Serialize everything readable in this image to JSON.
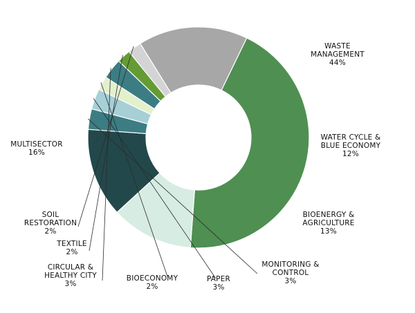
{
  "chart_data": {
    "type": "pie",
    "donut": true,
    "title": "",
    "slices": [
      {
        "label": "WASTE MANAGEMENT",
        "value": 44,
        "value_label": "44%",
        "color": "#4f8f52"
      },
      {
        "label": "WATER CYCLE & BLUE ECONOMY",
        "value": 12,
        "value_label": "12%",
        "color": "#d7ece2"
      },
      {
        "label": "BIOENERGY & AGRICULTURE",
        "value": 13,
        "value_label": "13%",
        "color": "#23484b"
      },
      {
        "label": "MONITORING & CONTROL",
        "value": 3,
        "value_label": "3%",
        "color": "#3c7d84"
      },
      {
        "label": "PAPER",
        "value": 3,
        "value_label": "3%",
        "color": "#a6cfd6"
      },
      {
        "label": "BIOECONOMY",
        "value": 2,
        "value_label": "2%",
        "color": "#e3f0cc"
      },
      {
        "label": "CIRCULAR & HEALTHY CITY",
        "value": 3,
        "value_label": "3%",
        "color": "#3c7d84"
      },
      {
        "label": "TEXTILE",
        "value": 2,
        "value_label": "2%",
        "color": "#659b34"
      },
      {
        "label": "SOIL RESTORATION",
        "value": 2,
        "value_label": "2%",
        "color": "#d4d4d4"
      },
      {
        "label": "MULTISECTOR",
        "value": 16,
        "value_label": "16%",
        "color": "#a7a7a7"
      }
    ]
  }
}
